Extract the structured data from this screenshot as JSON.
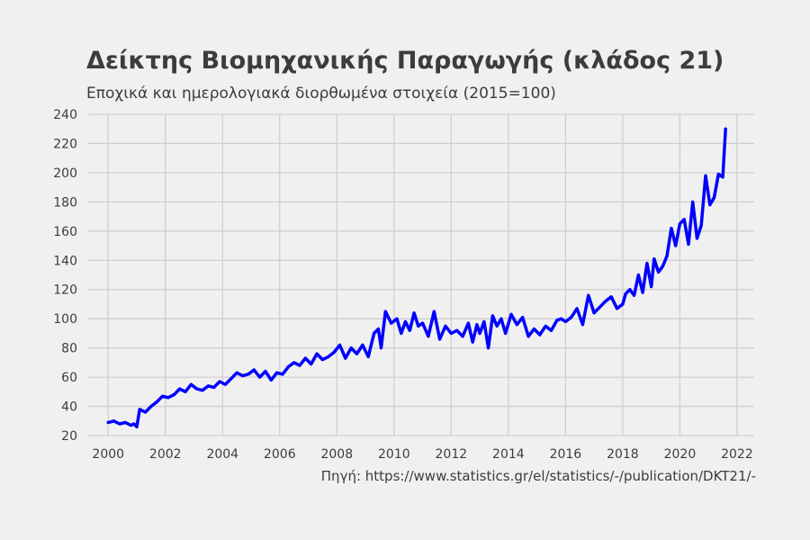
{
  "chart_data": {
    "type": "line",
    "title": "Δείκτης Βιομηχανικής Παραγωγής (κλάδος 21)",
    "subtitle": "Εποχικά και ημερολογιακά διορθωμένα στοιχεία (2015=100)",
    "source": "Πηγή: https://www.statistics.gr/el/statistics/-/publication/DKT21/-",
    "xlabel": "",
    "ylabel": "",
    "xlim": [
      1999.3,
      2022.6
    ],
    "ylim": [
      20,
      240
    ],
    "x_ticks": [
      2000,
      2002,
      2004,
      2006,
      2008,
      2010,
      2012,
      2014,
      2016,
      2018,
      2020,
      2022
    ],
    "y_ticks": [
      20,
      40,
      60,
      80,
      100,
      120,
      140,
      160,
      180,
      200,
      220,
      240
    ],
    "grid": true,
    "legend": "none",
    "series": [
      {
        "color": "#0000ff",
        "x": [
          2000.0,
          2000.2,
          2000.4,
          2000.6,
          2000.8,
          2000.9,
          2001.0,
          2001.1,
          2001.3,
          2001.5,
          2001.7,
          2001.9,
          2002.1,
          2002.3,
          2002.5,
          2002.7,
          2002.9,
          2003.1,
          2003.3,
          2003.5,
          2003.7,
          2003.9,
          2004.1,
          2004.3,
          2004.5,
          2004.7,
          2004.9,
          2005.1,
          2005.3,
          2005.5,
          2005.7,
          2005.9,
          2006.1,
          2006.3,
          2006.5,
          2006.7,
          2006.9,
          2007.1,
          2007.3,
          2007.5,
          2007.7,
          2007.9,
          2008.1,
          2008.3,
          2008.5,
          2008.7,
          2008.9,
          2009.1,
          2009.3,
          2009.45,
          2009.55,
          2009.7,
          2009.9,
          2010.1,
          2010.25,
          2010.4,
          2010.55,
          2010.7,
          2010.85,
          2011.0,
          2011.2,
          2011.4,
          2011.6,
          2011.8,
          2012.0,
          2012.2,
          2012.4,
          2012.6,
          2012.75,
          2012.9,
          2013.0,
          2013.15,
          2013.3,
          2013.45,
          2013.6,
          2013.75,
          2013.9,
          2014.1,
          2014.3,
          2014.5,
          2014.7,
          2014.9,
          2015.1,
          2015.3,
          2015.5,
          2015.7,
          2015.85,
          2016.0,
          2016.2,
          2016.4,
          2016.6,
          2016.8,
          2017.0,
          2017.2,
          2017.4,
          2017.6,
          2017.8,
          2018.0,
          2018.1,
          2018.25,
          2018.4,
          2018.55,
          2018.7,
          2018.85,
          2019.0,
          2019.1,
          2019.25,
          2019.4,
          2019.55,
          2019.7,
          2019.85,
          2020.0,
          2020.15,
          2020.3,
          2020.45,
          2020.6,
          2020.75,
          2020.9,
          2021.05,
          2021.2,
          2021.35,
          2021.5,
          2021.6
        ],
        "y": [
          29,
          30,
          28,
          29,
          27,
          28,
          26,
          38,
          36,
          40,
          43,
          47,
          46,
          48,
          52,
          50,
          55,
          52,
          51,
          54,
          53,
          57,
          55,
          59,
          63,
          61,
          62,
          65,
          60,
          64,
          58,
          63,
          62,
          67,
          70,
          68,
          73,
          69,
          76,
          72,
          74,
          77,
          82,
          73,
          80,
          76,
          82,
          74,
          90,
          93,
          80,
          105,
          97,
          100,
          90,
          98,
          92,
          104,
          95,
          97,
          88,
          105,
          86,
          95,
          90,
          92,
          88,
          97,
          84,
          96,
          90,
          98,
          80,
          102,
          95,
          100,
          90,
          103,
          96,
          101,
          88,
          93,
          89,
          95,
          92,
          99,
          100,
          98,
          101,
          107,
          96,
          116,
          104,
          108,
          112,
          115,
          107,
          110,
          117,
          120,
          116,
          130,
          118,
          138,
          122,
          141,
          132,
          136,
          143,
          162,
          150,
          165,
          168,
          151,
          180,
          155,
          164,
          198,
          178,
          183,
          199,
          197,
          230
        ]
      }
    ]
  }
}
